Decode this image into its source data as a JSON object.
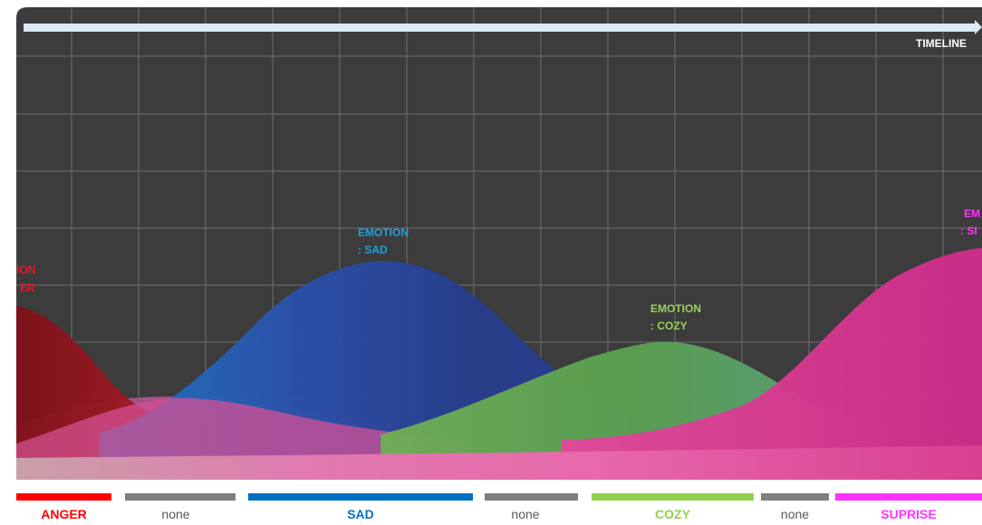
{
  "timeline": {
    "label": "TIMELINE"
  },
  "emotions": [
    {
      "id": "anger",
      "label_line1": "ION",
      "label_line2": "ER",
      "color": "#e0192b"
    },
    {
      "id": "sad",
      "label_line1": "EMOTION",
      "label_line2": ": SAD",
      "color": "#1ea0dc"
    },
    {
      "id": "cozy",
      "label_line1": "EMOTION",
      "label_line2": ": COZY",
      "color": "#9bd05a"
    },
    {
      "id": "suprise",
      "label_line1": "EM",
      "label_line2": ": SI",
      "color": "#ff33ff"
    }
  ],
  "legend": [
    {
      "label": "ANGER",
      "color": "#ff0000",
      "text_color": "#ff0000",
      "strong": true
    },
    {
      "label": "none",
      "color": "#7f7f7f",
      "text_color": "#595959",
      "strong": false
    },
    {
      "label": "SAD",
      "color": "#0070c0",
      "text_color": "#0070c0",
      "strong": true
    },
    {
      "label": "none",
      "color": "#7f7f7f",
      "text_color": "#595959",
      "strong": false
    },
    {
      "label": "COZY",
      "color": "#92d050",
      "text_color": "#92d050",
      "strong": true
    },
    {
      "label": "none",
      "color": "#7f7f7f",
      "text_color": "#595959",
      "strong": false
    },
    {
      "label": "SUPRISE",
      "color": "#ff33ff",
      "text_color": "#ff33ff",
      "strong": true
    }
  ],
  "colors": {
    "panel_background": "#3c3c3c",
    "grid": "#6e6e6e",
    "timeline_arrow": "#dde9f6",
    "floor": "#cfa3a8"
  }
}
